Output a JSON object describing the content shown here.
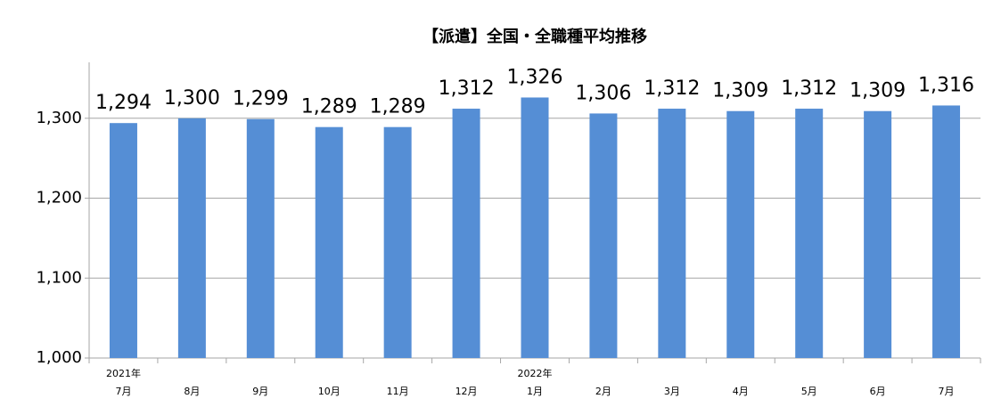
{
  "chart_data": {
    "type": "bar",
    "title": "【派遣】全国・全職種平均推移",
    "categories": [
      "7月",
      "8月",
      "9月",
      "10月",
      "11月",
      "12月",
      "1月",
      "2月",
      "3月",
      "4月",
      "5月",
      "6月",
      "7月"
    ],
    "year_labels": [
      "2021年",
      null,
      null,
      null,
      null,
      null,
      "2022年",
      null,
      null,
      null,
      null,
      null,
      null
    ],
    "values": [
      1294,
      1300,
      1299,
      1289,
      1289,
      1312,
      1326,
      1306,
      1312,
      1309,
      1312,
      1309,
      1316
    ],
    "value_labels": [
      "1,294",
      "1,300",
      "1,299",
      "1,289",
      "1,289",
      "1,312",
      "1,326",
      "1,306",
      "1,312",
      "1,309",
      "1,312",
      "1,309",
      "1,316"
    ],
    "color": "#558ed5",
    "ylim": [
      1000,
      1370
    ],
    "yticks": [
      {
        "value": 1000,
        "label": "1,000"
      },
      {
        "value": 1100,
        "label": "1,100"
      },
      {
        "value": 1200,
        "label": "1,200"
      },
      {
        "value": 1300,
        "label": "1,300"
      }
    ],
    "grid": true
  }
}
